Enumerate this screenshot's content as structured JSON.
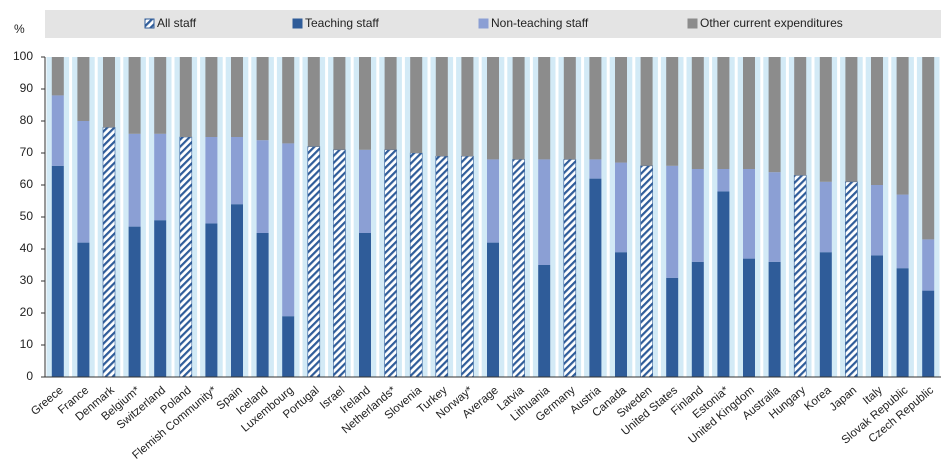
{
  "chart_data": {
    "type": "stacked_bar",
    "y_label": "%",
    "categories": [
      "Greece",
      "France",
      "Denmark",
      "Belgium*",
      "Switzerland",
      "Poland",
      "Flemish Community*",
      "Spain",
      "Iceland",
      "Luxembourg",
      "Portugal",
      "Israel",
      "Ireland",
      "Netherlands*",
      "Slovenia",
      "Turkey",
      "Norway*",
      "Average",
      "Latvia",
      "Lithuania",
      "Germany",
      "Austria",
      "Canada",
      "Sweden",
      "United States",
      "Finland",
      "Estonia*",
      "United Kingdom",
      "Australia",
      "Hungary",
      "Korea",
      "Japan",
      "Italy",
      "Slovak Republic",
      "Czech Republic"
    ],
    "series": [
      {
        "name": "All staff",
        "color": "#2f5c99",
        "hatch": true,
        "values": [
          null,
          null,
          78,
          null,
          null,
          75,
          null,
          null,
          null,
          null,
          72,
          71,
          null,
          71,
          70,
          69,
          69,
          null,
          68,
          null,
          68,
          null,
          null,
          66,
          null,
          null,
          null,
          null,
          null,
          63,
          null,
          61,
          null,
          null,
          null
        ]
      },
      {
        "name": "Teaching staff",
        "color": "#2f5c99",
        "values": [
          66,
          42,
          null,
          47,
          49,
          null,
          48,
          54,
          45,
          19,
          null,
          null,
          45,
          null,
          null,
          null,
          null,
          42,
          null,
          35,
          null,
          62,
          39,
          null,
          31,
          36,
          58,
          37,
          36,
          null,
          39,
          null,
          38,
          34,
          27
        ]
      },
      {
        "name": "Non-teaching staff",
        "color": "#8b9fd4",
        "values": [
          22,
          38,
          null,
          29,
          27,
          null,
          27,
          21,
          29,
          54,
          null,
          null,
          26,
          null,
          null,
          null,
          null,
          26,
          null,
          33,
          null,
          6,
          28,
          null,
          35,
          29,
          7,
          28,
          28,
          null,
          22,
          null,
          22,
          23,
          16
        ]
      },
      {
        "name": "Other current expenditures",
        "color": "#8c8c8c",
        "values": [
          12,
          20,
          22,
          24,
          24,
          25,
          25,
          25,
          26,
          27,
          28,
          29,
          29,
          29,
          30,
          31,
          31,
          32,
          32,
          32,
          32,
          32,
          33,
          34,
          34,
          35,
          35,
          35,
          36,
          37,
          39,
          39,
          40,
          43,
          57
        ]
      }
    ],
    "ylim": [
      0,
      100
    ],
    "yticks": [
      0,
      10,
      20,
      30,
      40,
      50,
      60,
      70,
      80,
      90,
      100
    ]
  }
}
